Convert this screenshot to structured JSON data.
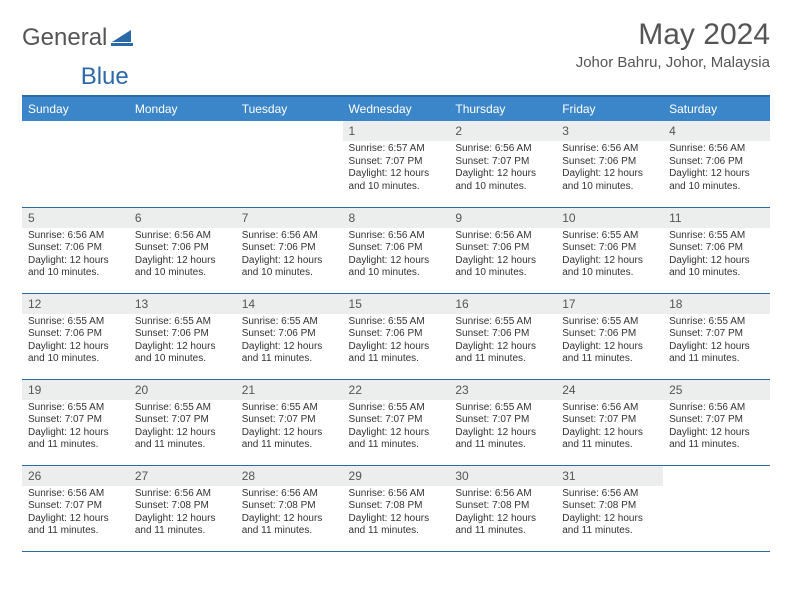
{
  "brand": {
    "word1": "General",
    "word2": "Blue",
    "logo_color": "#2b6aa8"
  },
  "title": "May 2024",
  "location": "Johor Bahru, Johor, Malaysia",
  "colors": {
    "header_bg": "#3b86c8",
    "header_text": "#ffffff",
    "rule": "#2b6aa8",
    "daynum_bg": "#eceded",
    "text": "#333333",
    "muted": "#555555"
  },
  "weekdays": [
    "Sunday",
    "Monday",
    "Tuesday",
    "Wednesday",
    "Thursday",
    "Friday",
    "Saturday"
  ],
  "weeks": [
    [
      {
        "n": "",
        "lines": []
      },
      {
        "n": "",
        "lines": []
      },
      {
        "n": "",
        "lines": []
      },
      {
        "n": "1",
        "lines": [
          "Sunrise: 6:57 AM",
          "Sunset: 7:07 PM",
          "Daylight: 12 hours",
          "and 10 minutes."
        ]
      },
      {
        "n": "2",
        "lines": [
          "Sunrise: 6:56 AM",
          "Sunset: 7:07 PM",
          "Daylight: 12 hours",
          "and 10 minutes."
        ]
      },
      {
        "n": "3",
        "lines": [
          "Sunrise: 6:56 AM",
          "Sunset: 7:06 PM",
          "Daylight: 12 hours",
          "and 10 minutes."
        ]
      },
      {
        "n": "4",
        "lines": [
          "Sunrise: 6:56 AM",
          "Sunset: 7:06 PM",
          "Daylight: 12 hours",
          "and 10 minutes."
        ]
      }
    ],
    [
      {
        "n": "5",
        "lines": [
          "Sunrise: 6:56 AM",
          "Sunset: 7:06 PM",
          "Daylight: 12 hours",
          "and 10 minutes."
        ]
      },
      {
        "n": "6",
        "lines": [
          "Sunrise: 6:56 AM",
          "Sunset: 7:06 PM",
          "Daylight: 12 hours",
          "and 10 minutes."
        ]
      },
      {
        "n": "7",
        "lines": [
          "Sunrise: 6:56 AM",
          "Sunset: 7:06 PM",
          "Daylight: 12 hours",
          "and 10 minutes."
        ]
      },
      {
        "n": "8",
        "lines": [
          "Sunrise: 6:56 AM",
          "Sunset: 7:06 PM",
          "Daylight: 12 hours",
          "and 10 minutes."
        ]
      },
      {
        "n": "9",
        "lines": [
          "Sunrise: 6:56 AM",
          "Sunset: 7:06 PM",
          "Daylight: 12 hours",
          "and 10 minutes."
        ]
      },
      {
        "n": "10",
        "lines": [
          "Sunrise: 6:55 AM",
          "Sunset: 7:06 PM",
          "Daylight: 12 hours",
          "and 10 minutes."
        ]
      },
      {
        "n": "11",
        "lines": [
          "Sunrise: 6:55 AM",
          "Sunset: 7:06 PM",
          "Daylight: 12 hours",
          "and 10 minutes."
        ]
      }
    ],
    [
      {
        "n": "12",
        "lines": [
          "Sunrise: 6:55 AM",
          "Sunset: 7:06 PM",
          "Daylight: 12 hours",
          "and 10 minutes."
        ]
      },
      {
        "n": "13",
        "lines": [
          "Sunrise: 6:55 AM",
          "Sunset: 7:06 PM",
          "Daylight: 12 hours",
          "and 10 minutes."
        ]
      },
      {
        "n": "14",
        "lines": [
          "Sunrise: 6:55 AM",
          "Sunset: 7:06 PM",
          "Daylight: 12 hours",
          "and 11 minutes."
        ]
      },
      {
        "n": "15",
        "lines": [
          "Sunrise: 6:55 AM",
          "Sunset: 7:06 PM",
          "Daylight: 12 hours",
          "and 11 minutes."
        ]
      },
      {
        "n": "16",
        "lines": [
          "Sunrise: 6:55 AM",
          "Sunset: 7:06 PM",
          "Daylight: 12 hours",
          "and 11 minutes."
        ]
      },
      {
        "n": "17",
        "lines": [
          "Sunrise: 6:55 AM",
          "Sunset: 7:06 PM",
          "Daylight: 12 hours",
          "and 11 minutes."
        ]
      },
      {
        "n": "18",
        "lines": [
          "Sunrise: 6:55 AM",
          "Sunset: 7:07 PM",
          "Daylight: 12 hours",
          "and 11 minutes."
        ]
      }
    ],
    [
      {
        "n": "19",
        "lines": [
          "Sunrise: 6:55 AM",
          "Sunset: 7:07 PM",
          "Daylight: 12 hours",
          "and 11 minutes."
        ]
      },
      {
        "n": "20",
        "lines": [
          "Sunrise: 6:55 AM",
          "Sunset: 7:07 PM",
          "Daylight: 12 hours",
          "and 11 minutes."
        ]
      },
      {
        "n": "21",
        "lines": [
          "Sunrise: 6:55 AM",
          "Sunset: 7:07 PM",
          "Daylight: 12 hours",
          "and 11 minutes."
        ]
      },
      {
        "n": "22",
        "lines": [
          "Sunrise: 6:55 AM",
          "Sunset: 7:07 PM",
          "Daylight: 12 hours",
          "and 11 minutes."
        ]
      },
      {
        "n": "23",
        "lines": [
          "Sunrise: 6:55 AM",
          "Sunset: 7:07 PM",
          "Daylight: 12 hours",
          "and 11 minutes."
        ]
      },
      {
        "n": "24",
        "lines": [
          "Sunrise: 6:56 AM",
          "Sunset: 7:07 PM",
          "Daylight: 12 hours",
          "and 11 minutes."
        ]
      },
      {
        "n": "25",
        "lines": [
          "Sunrise: 6:56 AM",
          "Sunset: 7:07 PM",
          "Daylight: 12 hours",
          "and 11 minutes."
        ]
      }
    ],
    [
      {
        "n": "26",
        "lines": [
          "Sunrise: 6:56 AM",
          "Sunset: 7:07 PM",
          "Daylight: 12 hours",
          "and 11 minutes."
        ]
      },
      {
        "n": "27",
        "lines": [
          "Sunrise: 6:56 AM",
          "Sunset: 7:08 PM",
          "Daylight: 12 hours",
          "and 11 minutes."
        ]
      },
      {
        "n": "28",
        "lines": [
          "Sunrise: 6:56 AM",
          "Sunset: 7:08 PM",
          "Daylight: 12 hours",
          "and 11 minutes."
        ]
      },
      {
        "n": "29",
        "lines": [
          "Sunrise: 6:56 AM",
          "Sunset: 7:08 PM",
          "Daylight: 12 hours",
          "and 11 minutes."
        ]
      },
      {
        "n": "30",
        "lines": [
          "Sunrise: 6:56 AM",
          "Sunset: 7:08 PM",
          "Daylight: 12 hours",
          "and 11 minutes."
        ]
      },
      {
        "n": "31",
        "lines": [
          "Sunrise: 6:56 AM",
          "Sunset: 7:08 PM",
          "Daylight: 12 hours",
          "and 11 minutes."
        ]
      },
      {
        "n": "",
        "lines": []
      }
    ]
  ]
}
